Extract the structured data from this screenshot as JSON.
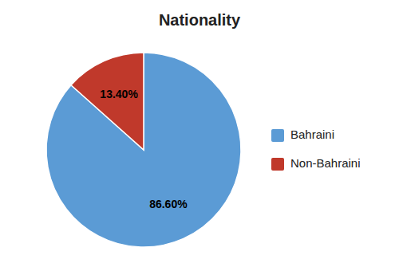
{
  "chart_data": {
    "type": "pie",
    "title": "Nationality",
    "categories": [
      "Bahraini",
      "Non-Bahraini"
    ],
    "values": [
      86.6,
      13.4
    ],
    "value_labels": [
      "86.60%",
      "13.40%"
    ],
    "colors": [
      "#5B9BD5",
      "#C0392B"
    ],
    "data_labels": true,
    "legend": "right"
  }
}
